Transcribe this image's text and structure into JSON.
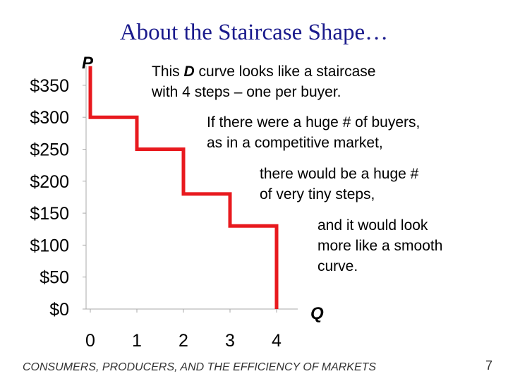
{
  "chart_data": {
    "type": "line",
    "title": "About the Staircase Shape…",
    "x": [
      0,
      0,
      1,
      1,
      2,
      2,
      3,
      3,
      4,
      4
    ],
    "series": [
      {
        "color": "#e8191e",
        "values": [
          380,
          300,
          300,
          250,
          250,
          180,
          180,
          130,
          130,
          0
        ]
      }
    ],
    "xlim": [
      0,
      4
    ],
    "xticks": [
      0,
      1,
      2,
      3,
      4
    ],
    "ylim": [
      0,
      380
    ],
    "yticks": [
      {
        "value": 0,
        "label": "$0"
      },
      {
        "value": 50,
        "label": "$50"
      },
      {
        "value": 100,
        "label": "$100"
      },
      {
        "value": 150,
        "label": "$150"
      },
      {
        "value": 200,
        "label": "$200"
      },
      {
        "value": 250,
        "label": "$250"
      },
      {
        "value": 300,
        "label": "$300"
      },
      {
        "value": 350,
        "label": "$350"
      }
    ],
    "ylabel": "P",
    "xlabel": "Q",
    "annotations": [
      [
        "This ",
        "D",
        " curve looks like a staircase",
        "with 4 steps – one per buyer."
      ],
      [
        "If there were a huge # of buyers,",
        "as in a competitive market,"
      ],
      [
        "there would be a huge #",
        "of very tiny steps,"
      ],
      [
        "and it would look",
        "more like a smooth",
        "curve."
      ]
    ]
  },
  "footer": "CONSUMERS, PRODUCERS, AND THE EFFICIENCY OF MARKETS",
  "page_number": "7"
}
